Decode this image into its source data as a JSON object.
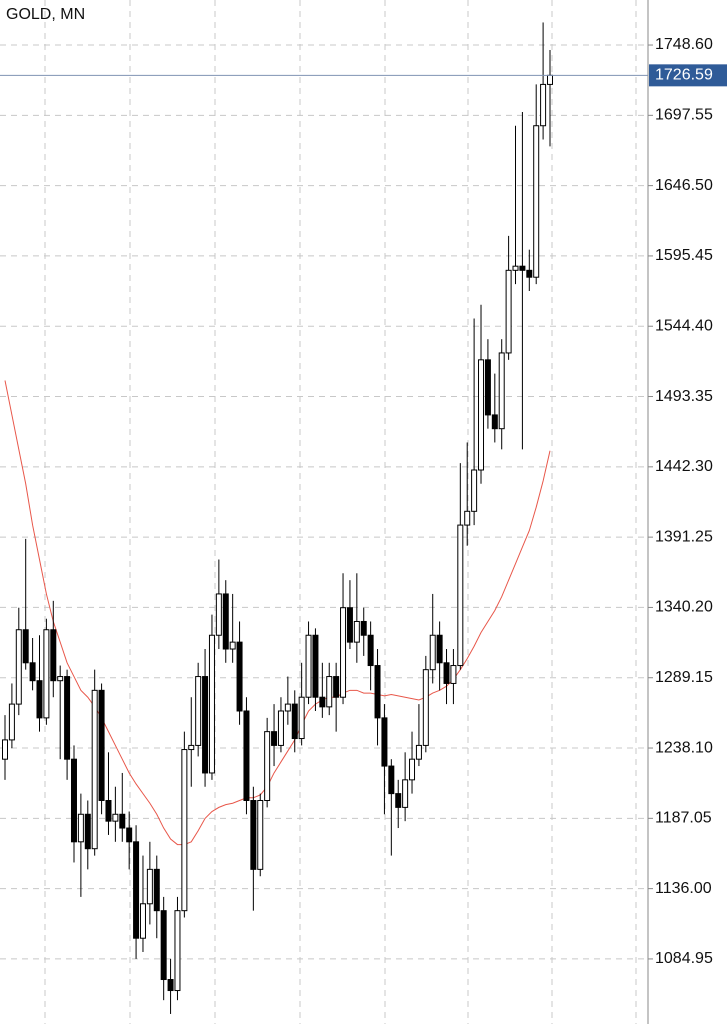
{
  "chart_data": {
    "type": "candlestick",
    "title": "GOLD, MN",
    "ylim": [
      1037.7,
      1781.3
    ],
    "yticks": [
      {
        "value": 1748.6,
        "label": "1748.60"
      },
      1697.55,
      {
        "value": 1646.5,
        "label": "1646.50"
      },
      1595.45,
      {
        "value": 1544.4,
        "label": "1544.40"
      },
      1493.35,
      {
        "value": 1442.3,
        "label": "1442.30"
      },
      1391.25,
      {
        "value": 1340.2,
        "label": "1340.20"
      },
      1289.15,
      {
        "value": 1238.1,
        "label": "1238.10"
      },
      1187.05,
      {
        "value": 1136,
        "label": "1136.00"
      },
      1084.95
    ],
    "grid": true,
    "current_price": 1726.59,
    "current_price_color": "#2f5b98",
    "up_color": "#ffffff",
    "down_color": "#000000",
    "open": [
      1230,
      1244,
      1270,
      1324,
      1300,
      1287,
      1260,
      1324,
      1287,
      1290,
      1230,
      1170,
      1190,
      1165,
      1280,
      1200,
      1185,
      1190,
      1180,
      1170,
      1100,
      1125,
      1150,
      1120,
      1070,
      1062,
      1120,
      1237,
      1240,
      1290,
      1220,
      1320,
      1350,
      1310,
      1315,
      1265,
      1200,
      1150,
      1200,
      1250,
      1240,
      1265,
      1270,
      1245,
      1275,
      1320,
      1275,
      1268,
      1290,
      1275,
      1340,
      1315,
      1330,
      1320,
      1298,
      1260,
      1225,
      1205,
      1195,
      1215,
      1230,
      1240,
      1295,
      1320,
      1300,
      1285,
      1298,
      1400,
      1410,
      1440,
      1520,
      1480,
      1470,
      1525,
      1585,
      1588,
      1585,
      1580,
      1690,
      1720
    ],
    "high": [
      1262,
      1285,
      1340,
      1390,
      1318,
      1320,
      1332,
      1345,
      1298,
      1295,
      1240,
      1205,
      1200,
      1295,
      1285,
      1235,
      1210,
      1220,
      1192,
      1182,
      1160,
      1170,
      1160,
      1130,
      1085,
      1130,
      1250,
      1275,
      1300,
      1310,
      1335,
      1375,
      1360,
      1350,
      1330,
      1275,
      1210,
      1205,
      1260,
      1270,
      1275,
      1290,
      1280,
      1300,
      1330,
      1325,
      1300,
      1300,
      1300,
      1365,
      1360,
      1365,
      1340,
      1330,
      1310,
      1270,
      1230,
      1215,
      1235,
      1250,
      1270,
      1305,
      1350,
      1330,
      1310,
      1310,
      1445,
      1460,
      1550,
      1560,
      1535,
      1510,
      1535,
      1610,
      1690,
      1700,
      1600,
      1720,
      1765,
      1745
    ],
    "low": [
      1215,
      1238,
      1262,
      1295,
      1280,
      1250,
      1255,
      1275,
      1230,
      1215,
      1155,
      1130,
      1150,
      1160,
      1190,
      1175,
      1170,
      1170,
      1150,
      1085,
      1090,
      1110,
      1100,
      1055,
      1045,
      1055,
      1115,
      1210,
      1232,
      1210,
      1215,
      1310,
      1300,
      1300,
      1255,
      1190,
      1120,
      1145,
      1195,
      1225,
      1235,
      1255,
      1235,
      1240,
      1270,
      1265,
      1260,
      1262,
      1250,
      1270,
      1310,
      1300,
      1305,
      1280,
      1240,
      1190,
      1160,
      1180,
      1185,
      1205,
      1225,
      1235,
      1285,
      1280,
      1270,
      1270,
      1295,
      1385,
      1400,
      1430,
      1470,
      1460,
      1455,
      1520,
      1575,
      1455,
      1570,
      1575,
      1680,
      1675
    ],
    "close": [
      1244,
      1270,
      1324,
      1300,
      1287,
      1260,
      1324,
      1287,
      1290,
      1230,
      1170,
      1190,
      1165,
      1280,
      1200,
      1185,
      1190,
      1180,
      1170,
      1100,
      1125,
      1150,
      1120,
      1070,
      1062,
      1120,
      1237,
      1240,
      1290,
      1220,
      1320,
      1350,
      1310,
      1315,
      1265,
      1200,
      1150,
      1200,
      1250,
      1240,
      1265,
      1270,
      1245,
      1275,
      1320,
      1275,
      1268,
      1290,
      1275,
      1340,
      1315,
      1330,
      1320,
      1298,
      1260,
      1225,
      1205,
      1195,
      1215,
      1230,
      1240,
      1295,
      1320,
      1300,
      1285,
      1298,
      1400,
      1410,
      1440,
      1520,
      1480,
      1470,
      1525,
      1585,
      1588,
      1585,
      1580,
      1690,
      1720,
      1726.59
    ],
    "ma": {
      "color": "#e8574a",
      "values": [
        1505,
        1480,
        1455,
        1430,
        1400,
        1375,
        1350,
        1330,
        1315,
        1300,
        1290,
        1280,
        1275,
        1268,
        1260,
        1250,
        1240,
        1230,
        1220,
        1212,
        1205,
        1198,
        1190,
        1180,
        1172,
        1168,
        1168,
        1170,
        1178,
        1187,
        1192,
        1195,
        1197,
        1198,
        1200,
        1202,
        1202,
        1204,
        1210,
        1220,
        1228,
        1236,
        1244,
        1255,
        1265,
        1270,
        1273,
        1275,
        1275,
        1278,
        1280,
        1280,
        1278,
        1278,
        1277,
        1276,
        1277,
        1276,
        1275,
        1274,
        1273,
        1275,
        1278,
        1280,
        1283,
        1288,
        1295,
        1303,
        1312,
        1322,
        1330,
        1338,
        1348,
        1360,
        1372,
        1384,
        1396,
        1413,
        1432,
        1454
      ]
    }
  }
}
